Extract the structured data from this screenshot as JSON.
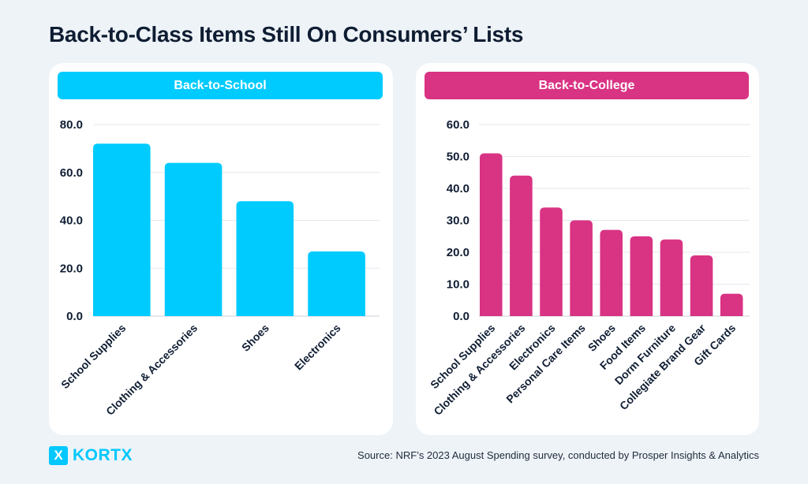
{
  "title": "Back-to-Class Items Still On Consumers’ Lists",
  "footer": {
    "logo_mark": "X",
    "logo_text": "KORTX",
    "source": "Source: NRF’s 2023 August Spending survey, conducted by Prosper Insights & Analytics"
  },
  "colors": {
    "school": "#00cbff",
    "college": "#d93384",
    "text": "#0f1d33",
    "grid": "#e3e8ee"
  },
  "chart_data": [
    {
      "type": "bar",
      "title": "Back-to-School",
      "xlabel": "",
      "ylabel": "",
      "categories": [
        "School Supplies",
        "Clothing & Accessories",
        "Shoes",
        "Electronics"
      ],
      "values": [
        72,
        64,
        48,
        27
      ],
      "ylim": [
        0,
        80
      ],
      "yticks": [
        0,
        20,
        40,
        60,
        80
      ],
      "ytick_labels": [
        "0.0",
        "20.0",
        "40.0",
        "60.0",
        "80.0"
      ],
      "grid": true,
      "legend": "none",
      "color": "#00cbff"
    },
    {
      "type": "bar",
      "title": "Back-to-College",
      "xlabel": "",
      "ylabel": "",
      "categories": [
        "School Supplies",
        "Clothing & Accessories",
        "Electronics",
        "Personal Care Items",
        "Shoes",
        "Food Items",
        "Dorm Furniture",
        "Collegiate Brand Gear",
        "Gift Cards"
      ],
      "values": [
        51,
        44,
        34,
        30,
        27,
        25,
        24,
        19,
        7
      ],
      "ylim": [
        0,
        60
      ],
      "yticks": [
        0,
        10,
        20,
        30,
        40,
        50,
        60
      ],
      "ytick_labels": [
        "0.0",
        "10.0",
        "20.0",
        "30.0",
        "40.0",
        "50.0",
        "60.0"
      ],
      "grid": true,
      "legend": "none",
      "color": "#d93384"
    }
  ]
}
